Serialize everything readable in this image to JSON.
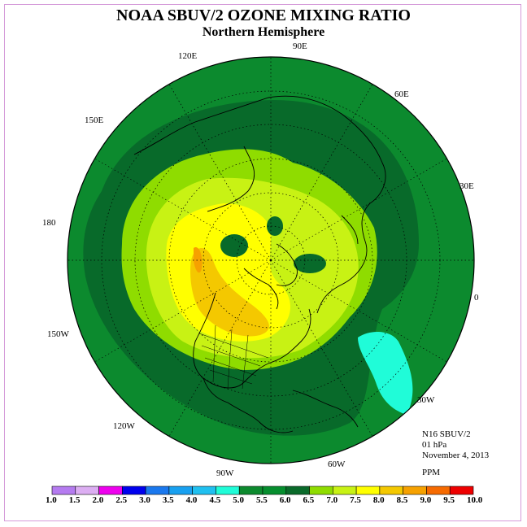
{
  "title": "NOAA SBUV/2 OZONE MIXING RATIO",
  "subtitle": "Northern Hemisphere",
  "longitude_labels": [
    "90E",
    "60E",
    "30E",
    "0",
    "30W",
    "60W",
    "90W",
    "120W",
    "150W",
    "180",
    "150E",
    "120E"
  ],
  "info": {
    "satellite": "N16 SBUV/2",
    "level": "01 hPa",
    "date": "November 4, 2013",
    "units": "PPM"
  },
  "colorbar": {
    "ticks": [
      "1.0",
      "1.5",
      "2.0",
      "2.5",
      "3.0",
      "3.5",
      "4.0",
      "4.5",
      "5.0",
      "5.5",
      "6.0",
      "6.5",
      "7.0",
      "7.5",
      "8.0",
      "8.5",
      "9.0",
      "9.5",
      "10.0"
    ],
    "colors": [
      "#b57bf0",
      "#dcaef2",
      "#ee00ee",
      "#0000ee",
      "#1a78ee",
      "#18a0f0",
      "#20c0f0",
      "#20fcd8",
      "#0c8a2e",
      "#068e2e",
      "#0a6a2a",
      "#8fdc00",
      "#c8f214",
      "#ffff00",
      "#f4c800",
      "#f6a100",
      "#f66a00",
      "#ee0000",
      "#7a4a30"
    ]
  }
}
